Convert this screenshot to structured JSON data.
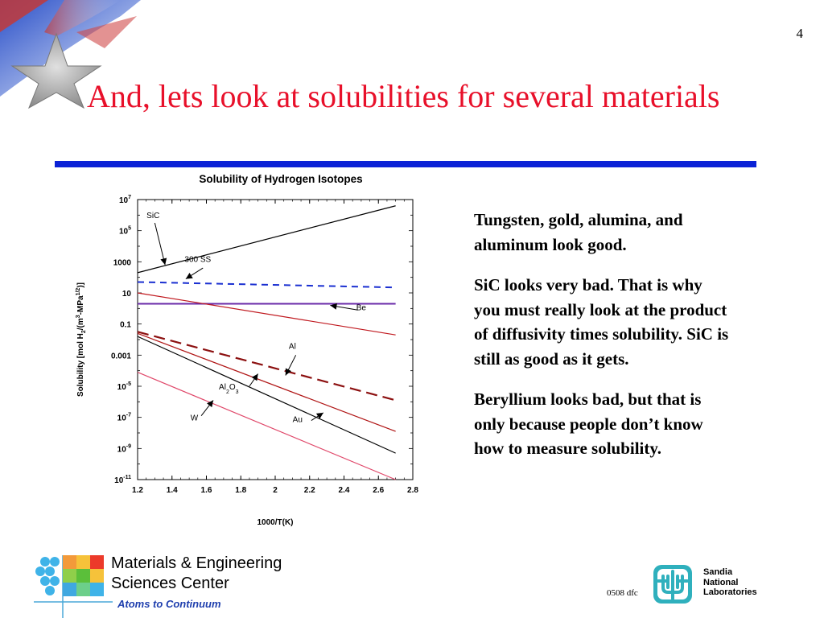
{
  "slide": {
    "number": "4",
    "title": "And, lets look at solubilities for several materials"
  },
  "chart_data": {
    "type": "line",
    "title": "Solubility of Hydrogen Isotopes",
    "xlabel": "1000/T(K)",
    "ylabel": "Solubility [mol H2/(m3-MPa1/2)]",
    "ylabel_parts": {
      "pre": "Solubility [mol H",
      "sub1": "2",
      "mid": "/(m",
      "sup1": "3",
      "mid2": "-MPa",
      "sup2": "1/2",
      "post": ")]"
    },
    "xlim": [
      1.2,
      2.8
    ],
    "ylim_log10": [
      -11,
      7
    ],
    "y_scale": "log",
    "grid": false,
    "x_ticks": [
      {
        "v": 1.2,
        "label": "1.2"
      },
      {
        "v": 1.4,
        "label": "1.4"
      },
      {
        "v": 1.6,
        "label": "1.6"
      },
      {
        "v": 1.8,
        "label": "1.8"
      },
      {
        "v": 2.0,
        "label": "2"
      },
      {
        "v": 2.2,
        "label": "2.2"
      },
      {
        "v": 2.4,
        "label": "2.4"
      },
      {
        "v": 2.6,
        "label": "2.6"
      },
      {
        "v": 2.8,
        "label": "2.8"
      }
    ],
    "y_ticks": [
      {
        "e": 7,
        "base": "10",
        "sup": "7"
      },
      {
        "e": 5,
        "base": "10",
        "sup": "5"
      },
      {
        "e": 3,
        "base": "1000",
        "sup": ""
      },
      {
        "e": 1,
        "base": "10",
        "sup": ""
      },
      {
        "e": -1,
        "base": "0.1",
        "sup": ""
      },
      {
        "e": -3,
        "base": "0.001",
        "sup": ""
      },
      {
        "e": -5,
        "base": "10",
        "sup": "-5"
      },
      {
        "e": -7,
        "base": "10",
        "sup": "-7"
      },
      {
        "e": -9,
        "base": "10",
        "sup": "-9"
      },
      {
        "e": -11,
        "base": "10",
        "sup": "-11"
      }
    ],
    "series": [
      {
        "name": "SiC",
        "color": "#000000",
        "style": "solid",
        "x": [
          1.2,
          2.7
        ],
        "log10_y": [
          2.3,
          6.6
        ]
      },
      {
        "name": "300 SS",
        "color": "#1a2fd1",
        "style": "dashed",
        "x": [
          1.2,
          2.7
        ],
        "log10_y": [
          1.7,
          1.35
        ]
      },
      {
        "name": "Be",
        "color": "#6a2aa8",
        "style": "solid",
        "x": [
          1.2,
          2.7
        ],
        "log10_y": [
          0.3,
          0.3
        ]
      },
      {
        "name": "red-upper",
        "color": "#c0191f",
        "style": "solid",
        "x": [
          1.2,
          2.7
        ],
        "log10_y": [
          1.0,
          -1.7
        ]
      },
      {
        "name": "Al",
        "color": "#8c1010",
        "style": "dashed-long",
        "x": [
          1.2,
          2.7
        ],
        "log10_y": [
          -1.5,
          -5.9
        ]
      },
      {
        "name": "Al2O3",
        "color": "#b01515",
        "style": "solid",
        "x": [
          1.2,
          2.7
        ],
        "log10_y": [
          -1.6,
          -7.9
        ]
      },
      {
        "name": "Au",
        "color": "#000000",
        "style": "solid",
        "x": [
          1.2,
          2.7
        ],
        "log10_y": [
          -1.8,
          -9.3
        ]
      },
      {
        "name": "W",
        "color": "#e0486a",
        "style": "solid",
        "x": [
          1.2,
          2.7
        ],
        "log10_y": [
          -4.1,
          -11.0
        ]
      }
    ],
    "annotations": [
      {
        "label": "SiC",
        "tx": 1.29,
        "ty_log": 5.8,
        "ax_from": 1.3,
        "ay_from_log": 5.5,
        "ax_to": 1.36,
        "ay_to_log": 2.8
      },
      {
        "label": "300 SS",
        "tx": 1.55,
        "ty_log": 3.0,
        "ax_from": 1.58,
        "ay_from_log": 2.6,
        "ax_to": 1.48,
        "ay_to_log": 1.9
      },
      {
        "label": "Be",
        "tx": 2.5,
        "ty_log": -0.1,
        "ax_from": 2.48,
        "ay_from_log": -0.1,
        "ax_to": 2.32,
        "ay_to_log": 0.2
      },
      {
        "label": "Al",
        "tx": 2.1,
        "ty_log": -2.6,
        "ax_from": 2.12,
        "ay_from_log": -3.0,
        "ax_to": 2.06,
        "ay_to_log": -4.3
      },
      {
        "label": "Al2O3",
        "tx": 1.73,
        "ty_log": -5.2,
        "ax_from": 1.85,
        "ay_from_log": -5.0,
        "ax_to": 1.9,
        "ay_to_log": -4.2
      },
      {
        "label": "W",
        "tx": 1.53,
        "ty_log": -7.2,
        "ax_from": 1.57,
        "ay_from_log": -6.9,
        "ax_to": 1.64,
        "ay_to_log": -5.9
      },
      {
        "label": "Au",
        "tx": 2.13,
        "ty_log": -7.3,
        "ax_from": 2.21,
        "ay_from_log": -7.2,
        "ax_to": 2.28,
        "ay_to_log": -6.7
      }
    ],
    "label_al2o3": {
      "base": "Al",
      "sub1": "2",
      "mid": "O",
      "sub2": "3"
    }
  },
  "body": {
    "paragraphs": [
      "Tungsten, gold, alumina, and aluminum look good.",
      "SiC looks very bad.  That is why you must really look at the product of diffusivity times solubility.  SiC is still as good as it gets.",
      "Beryllium looks bad, but that is only because people don’t know how to measure solubility."
    ]
  },
  "footer": {
    "center_name_line1": "Materials & Engineering",
    "center_name_line2": "Sciences Center",
    "tagline": "Atoms to Continuum",
    "doc_code": "0508 dfc",
    "lab_line1": "Sandia",
    "lab_line2": "National",
    "lab_line3": "Laboratories"
  },
  "colors": {
    "title": "#e8102a",
    "rule": "#0b22d6",
    "tagline": "#1f3fae"
  }
}
